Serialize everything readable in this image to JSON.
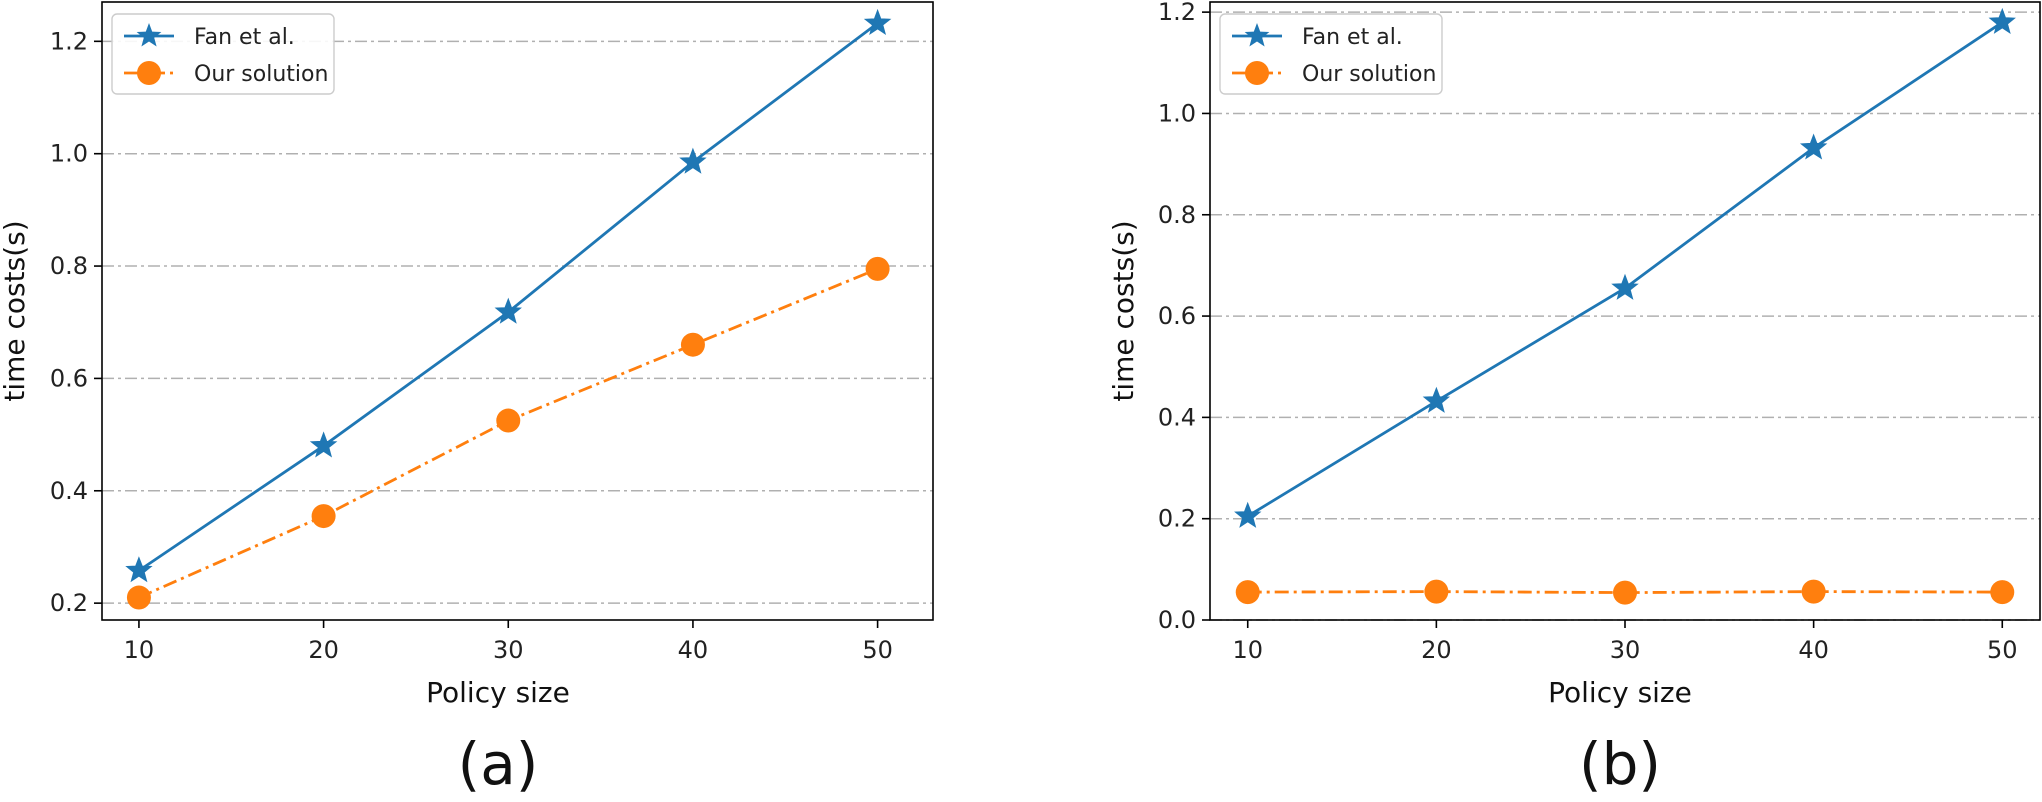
{
  "chart_data": [
    {
      "type": "line",
      "panel_label": "(a)",
      "xlabel": "Policy size",
      "ylabel": "time costs(s)",
      "x": [
        10,
        20,
        30,
        40,
        50
      ],
      "xticks": [
        "10",
        "20",
        "30",
        "40",
        "50"
      ],
      "xlim": [
        8,
        53
      ],
      "ylim": [
        0.17,
        1.27
      ],
      "yticks": [
        0.2,
        0.4,
        0.6,
        0.8,
        1.0,
        1.2
      ],
      "ytick_labels": [
        "0.2",
        "0.4",
        "0.6",
        "0.8",
        "1.0",
        "1.2"
      ],
      "grid": "horizontal dash-dot",
      "legend_position": "top-left",
      "series": [
        {
          "name": "Fan et al.",
          "values": [
            0.258,
            0.48,
            0.718,
            0.985,
            1.232
          ],
          "color": "#1f77b4",
          "marker": "star",
          "linestyle": "solid"
        },
        {
          "name": "Our solution",
          "values": [
            0.21,
            0.355,
            0.525,
            0.66,
            0.795
          ],
          "color": "#ff7f0e",
          "marker": "circle",
          "linestyle": "dash-dot"
        }
      ]
    },
    {
      "type": "line",
      "panel_label": "(b)",
      "xlabel": "Policy size",
      "ylabel": "time costs(s)",
      "x": [
        10,
        20,
        30,
        40,
        50
      ],
      "xticks": [
        "10",
        "20",
        "30",
        "40",
        "50"
      ],
      "xlim": [
        8,
        52
      ],
      "ylim": [
        0.0,
        1.22
      ],
      "yticks": [
        0.0,
        0.2,
        0.4,
        0.6,
        0.8,
        1.0,
        1.2
      ],
      "ytick_labels": [
        "0.0",
        "0.2",
        "0.4",
        "0.6",
        "0.8",
        "1.0",
        "1.2"
      ],
      "grid": "horizontal dash-dot",
      "legend_position": "top-left",
      "series": [
        {
          "name": "Fan et al.",
          "values": [
            0.205,
            0.432,
            0.655,
            0.932,
            1.18
          ],
          "color": "#1f77b4",
          "marker": "star",
          "linestyle": "solid"
        },
        {
          "name": "Our solution",
          "values": [
            0.055,
            0.056,
            0.054,
            0.056,
            0.055
          ],
          "color": "#ff7f0e",
          "marker": "circle",
          "linestyle": "dash-dot"
        }
      ]
    }
  ]
}
